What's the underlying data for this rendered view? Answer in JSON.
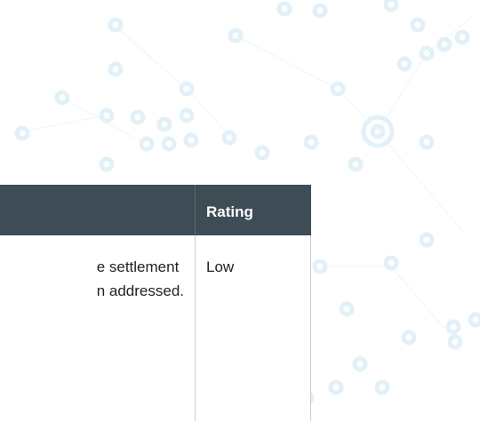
{
  "table": {
    "header": {
      "rating": "Rating"
    },
    "rows": [
      {
        "description": [
          "e settlement",
          "n addressed."
        ],
        "rating": "Low"
      }
    ]
  }
}
